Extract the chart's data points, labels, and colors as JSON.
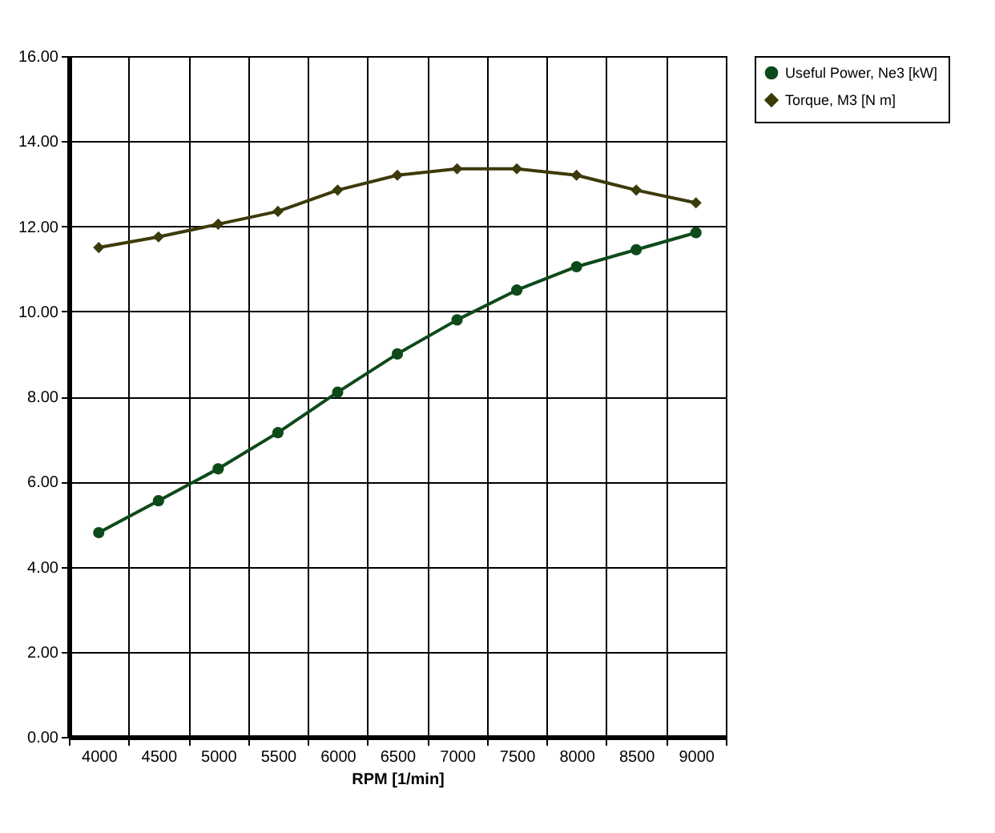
{
  "chart_data": {
    "type": "line",
    "xlabel": "RPM [1/min]",
    "categories": [
      "4000",
      "4500",
      "5000",
      "5500",
      "6000",
      "6500",
      "7000",
      "7500",
      "8000",
      "8500",
      "9000"
    ],
    "series": [
      {
        "name": "Useful Power, Ne3 [kW]",
        "color": "#0d4a1a",
        "marker": "circle",
        "values": [
          4.8,
          5.55,
          6.3,
          7.15,
          8.1,
          9.0,
          9.8,
          10.5,
          11.05,
          11.45,
          11.85
        ]
      },
      {
        "name": "Torque, M3 [N m]",
        "color": "#3d3a0a",
        "marker": "diamond",
        "values": [
          11.5,
          11.75,
          12.05,
          12.35,
          12.85,
          13.2,
          13.35,
          13.35,
          13.2,
          12.85,
          12.55
        ]
      }
    ],
    "ylim": [
      0,
      16
    ],
    "yticks": [
      {
        "value": 0,
        "label": "0.00"
      },
      {
        "value": 2,
        "label": "2.00"
      },
      {
        "value": 4,
        "label": "4.00"
      },
      {
        "value": 6,
        "label": "6.00"
      },
      {
        "value": 8,
        "label": "8.00"
      },
      {
        "value": 10,
        "label": "10.00"
      },
      {
        "value": 12,
        "label": "12.00"
      },
      {
        "value": 14,
        "label": "14.00"
      },
      {
        "value": 16,
        "label": "16.00"
      }
    ],
    "grid": true,
    "legend": "right",
    "line_style": "solid"
  }
}
